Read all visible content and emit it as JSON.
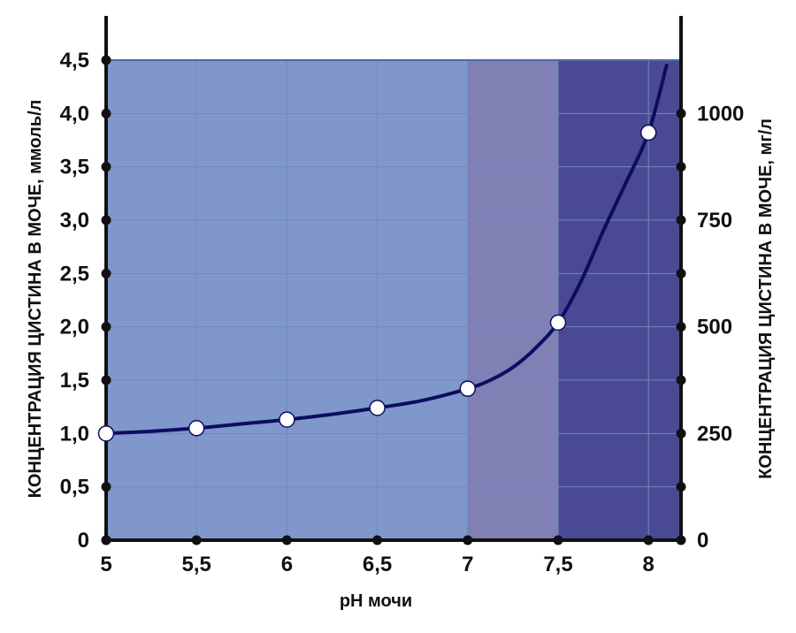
{
  "chart_data": {
    "type": "line",
    "xlabel": "pH мочи",
    "ylabel_left": "КОНЦЕНТРАЦИЯ ЦИСТИНА В МОЧЕ, ммоль/л",
    "ylabel_right": "КОНЦЕНТРАЦИЯ ЦИСТИНА В МОЧЕ, мг/л",
    "xlim": [
      5,
      8.18
    ],
    "ylim_left": [
      0,
      4.5
    ],
    "ylim_right": [
      0,
      1125
    ],
    "x_ticks": [
      5,
      5.5,
      6,
      6.5,
      7,
      7.5,
      8
    ],
    "x_tick_labels": [
      "5",
      "5,5",
      "6",
      "6,5",
      "7",
      "7,5",
      "8"
    ],
    "y_left_ticks": [
      0,
      0.5,
      1.0,
      1.5,
      2.0,
      2.5,
      3.0,
      3.5,
      4.0,
      4.5
    ],
    "y_left_tick_labels": [
      "0",
      "0,5",
      "1,0",
      "1,5",
      "2,0",
      "2,5",
      "3,0",
      "3,5",
      "4,0",
      "4,5"
    ],
    "y_right_ticks": [
      0,
      125,
      250,
      375,
      500,
      625,
      750,
      875,
      1000
    ],
    "y_right_tick_labels": [
      "0",
      "",
      "250",
      "",
      "500",
      "",
      "750",
      "",
      "1000"
    ],
    "regions": [
      {
        "from": 5,
        "to": 7,
        "color": "#7f97cb"
      },
      {
        "from": 7,
        "to": 7.5,
        "color": "#8080b4"
      },
      {
        "from": 7.5,
        "to": 8.18,
        "color": "#4a4a94"
      }
    ],
    "series": [
      {
        "color": "#0d0d60",
        "points_x": [
          5,
          5.5,
          6,
          6.5,
          7,
          7.5,
          8
        ],
        "points_y": [
          1.0,
          1.05,
          1.13,
          1.24,
          1.42,
          2.04,
          3.82
        ],
        "curve_x": [
          5,
          5.25,
          5.5,
          5.75,
          6,
          6.25,
          6.5,
          6.75,
          7,
          7.125,
          7.25,
          7.375,
          7.5,
          7.625,
          7.75,
          7.875,
          8,
          8.1
        ],
        "curve_y": [
          1.0,
          1.02,
          1.05,
          1.09,
          1.13,
          1.18,
          1.24,
          1.31,
          1.42,
          1.5,
          1.62,
          1.8,
          2.04,
          2.42,
          2.9,
          3.35,
          3.82,
          4.45
        ]
      }
    ],
    "grid": true,
    "colors": {
      "axis": "#111111",
      "grid": "#6f88bd",
      "top_border": "#4f6aa5",
      "marker_fill": "#ffffff"
    }
  }
}
